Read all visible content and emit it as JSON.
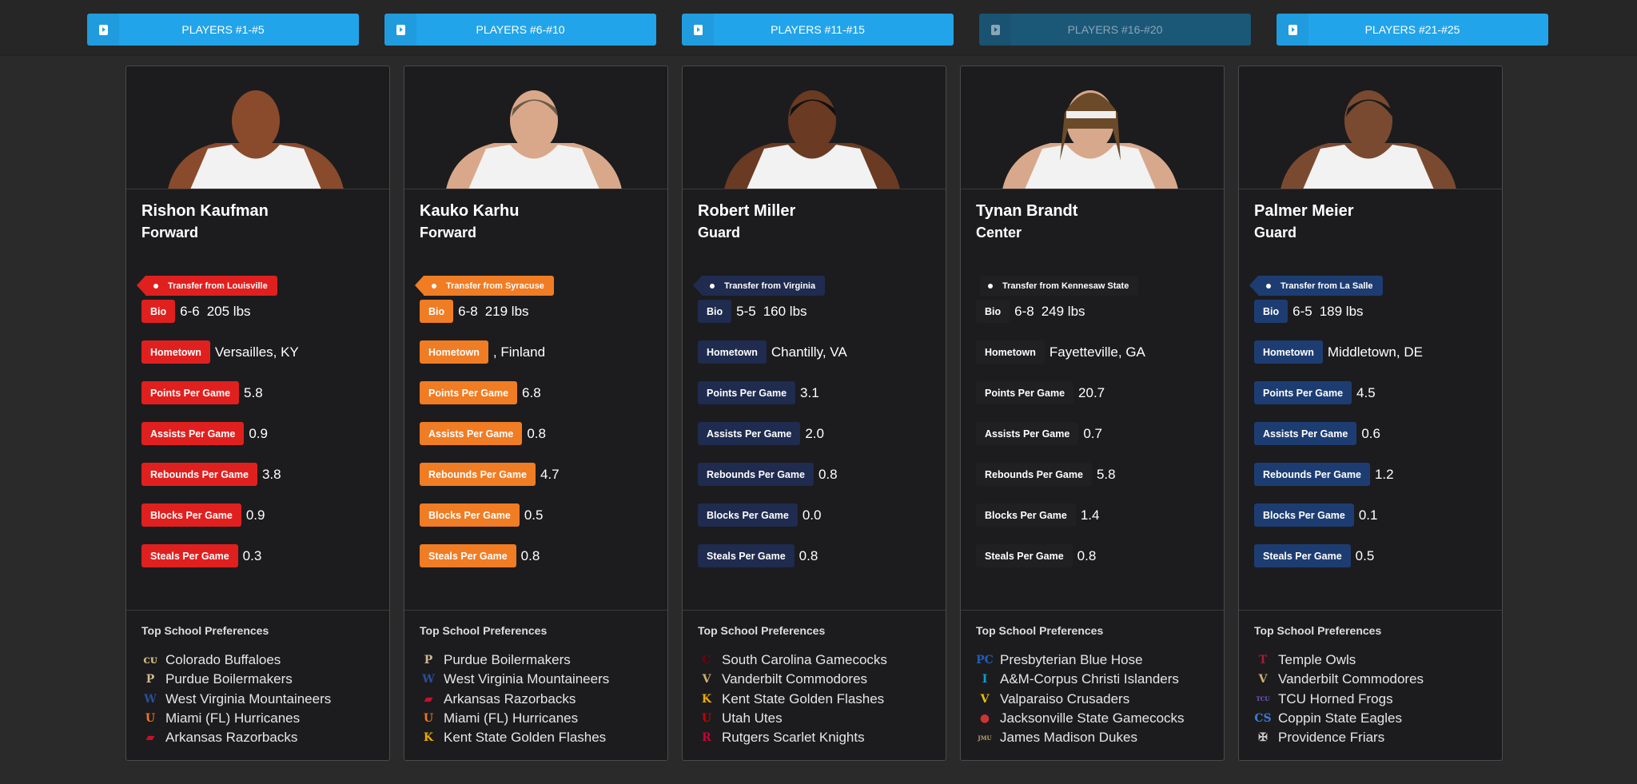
{
  "nav": [
    {
      "label": "PLAYERS #1-#5",
      "active": true
    },
    {
      "label": "PLAYERS #6-#10",
      "active": true
    },
    {
      "label": "PLAYERS #11-#15",
      "active": true
    },
    {
      "label": "PLAYERS #16-#20",
      "active": false
    },
    {
      "label": "PLAYERS #21-#25",
      "active": true
    }
  ],
  "labels": {
    "bio": "Bio",
    "hometown": "Hometown",
    "ppg": "Points Per Game",
    "apg": "Assists Per Game",
    "rpg": "Rebounds Per Game",
    "bpg": "Blocks Per Game",
    "spg": "Steals Per Game",
    "prefs_heading": "Top School Preferences"
  },
  "players": [
    {
      "name": "Rishon Kaufman",
      "position": "Forward",
      "transfer": "Transfer from Louisville",
      "color": "#e0201f",
      "height": "6-6",
      "weight": "205 lbs",
      "hometown": "Versailles, KY",
      "ppg": "5.8",
      "apg": "0.9",
      "rpg": "3.8",
      "bpg": "0.9",
      "spg": "0.3",
      "skin": "#8a4a2c",
      "hair": "none",
      "schools": [
        {
          "name": "Colorado Buffaloes",
          "icon": "buffalo-icon",
          "c": "#cfb87c"
        },
        {
          "name": "Purdue Boilermakers",
          "icon": "purdue-p-icon",
          "c": "#cfb991"
        },
        {
          "name": "West Virginia Mountaineers",
          "icon": "wv-icon",
          "c": "#2a4c9a"
        },
        {
          "name": "Miami (FL) Hurricanes",
          "icon": "miami-u-icon",
          "c": "#f47321"
        },
        {
          "name": "Arkansas Razorbacks",
          "icon": "razorback-icon",
          "c": "#c8102e"
        }
      ]
    },
    {
      "name": "Kauko Karhu",
      "position": "Forward",
      "transfer": "Transfer from Syracuse",
      "color": "#f07c24",
      "height": "6-8",
      "weight": "219 lbs",
      "hometown": ", Finland",
      "ppg": "6.8",
      "apg": "0.8",
      "rpg": "4.7",
      "bpg": "0.5",
      "spg": "0.8",
      "skin": "#d9a88a",
      "hair": "#6a5a48",
      "schools": [
        {
          "name": "Purdue Boilermakers",
          "icon": "purdue-p-icon",
          "c": "#cfb991"
        },
        {
          "name": "West Virginia Mountaineers",
          "icon": "wv-icon",
          "c": "#2a4c9a"
        },
        {
          "name": "Arkansas Razorbacks",
          "icon": "razorback-icon",
          "c": "#c8102e"
        },
        {
          "name": "Miami (FL) Hurricanes",
          "icon": "miami-u-icon",
          "c": "#f47321"
        },
        {
          "name": "Kent State Golden Flashes",
          "icon": "kent-state-icon",
          "c": "#eaab00"
        }
      ]
    },
    {
      "name": "Robert Miller",
      "position": "Guard",
      "transfer": "Transfer from Virginia",
      "color": "#1f2b4f",
      "height": "5-5",
      "weight": "160 lbs",
      "hometown": "Chantilly, VA",
      "ppg": "3.1",
      "apg": "2.0",
      "rpg": "0.8",
      "bpg": "0.0",
      "spg": "0.8",
      "skin": "#6a3a22",
      "hair": "#111",
      "schools": [
        {
          "name": "South Carolina Gamecocks",
          "icon": "gamecock-icon",
          "c": "#73000a"
        },
        {
          "name": "Vanderbilt Commodores",
          "icon": "vanderbilt-v-icon",
          "c": "#cfae70"
        },
        {
          "name": "Kent State Golden Flashes",
          "icon": "kent-state-icon",
          "c": "#eaab00"
        },
        {
          "name": "Utah Utes",
          "icon": "utah-u-icon",
          "c": "#cc0000"
        },
        {
          "name": "Rutgers Scarlet Knights",
          "icon": "rutgers-r-icon",
          "c": "#cc0033"
        }
      ]
    },
    {
      "name": "Tynan Brandt",
      "position": "Center",
      "transfer": "Transfer from Kennesaw State",
      "color": "#1f1f21",
      "height": "6-8",
      "weight": "249 lbs",
      "hometown": "Fayetteville, GA",
      "ppg": "20.7",
      "apg": "0.7",
      "rpg": "5.8",
      "bpg": "1.4",
      "spg": "0.8",
      "skin": "#d8a88c",
      "hair": "#6b4a2a",
      "schools": [
        {
          "name": "Presbyterian Blue Hose",
          "icon": "pc-icon",
          "c": "#1b5fbf"
        },
        {
          "name": "A&M-Corpus Christi Islanders",
          "icon": "islanders-icon",
          "c": "#0a9fd0"
        },
        {
          "name": "Valparaiso Crusaders",
          "icon": "valpo-icon",
          "c": "#e6c200"
        },
        {
          "name": "Jacksonville State Gamecocks",
          "icon": "jax-state-icon",
          "c": "#cc3333"
        },
        {
          "name": "James Madison Dukes",
          "icon": "jmu-icon",
          "c": "#b5a36a"
        }
      ]
    },
    {
      "name": "Palmer Meier",
      "position": "Guard",
      "transfer": "Transfer from La Salle",
      "color": "#1d3d72",
      "height": "6-5",
      "weight": "189 lbs",
      "hometown": "Middletown, DE",
      "ppg": "4.5",
      "apg": "0.6",
      "rpg": "1.2",
      "bpg": "0.1",
      "spg": "0.5",
      "skin": "#7a4a30",
      "hair": "#1a1a1a",
      "schools": [
        {
          "name": "Temple Owls",
          "icon": "temple-t-icon",
          "c": "#a41e35"
        },
        {
          "name": "Vanderbilt Commodores",
          "icon": "vanderbilt-v-icon",
          "c": "#cfae70"
        },
        {
          "name": "TCU Horned Frogs",
          "icon": "tcu-icon",
          "c": "#7d5bc6"
        },
        {
          "name": "Coppin State Eagles",
          "icon": "coppin-state-icon",
          "c": "#3a7bd5"
        },
        {
          "name": "Providence Friars",
          "icon": "friar-icon",
          "c": "#cccccc"
        }
      ]
    }
  ]
}
